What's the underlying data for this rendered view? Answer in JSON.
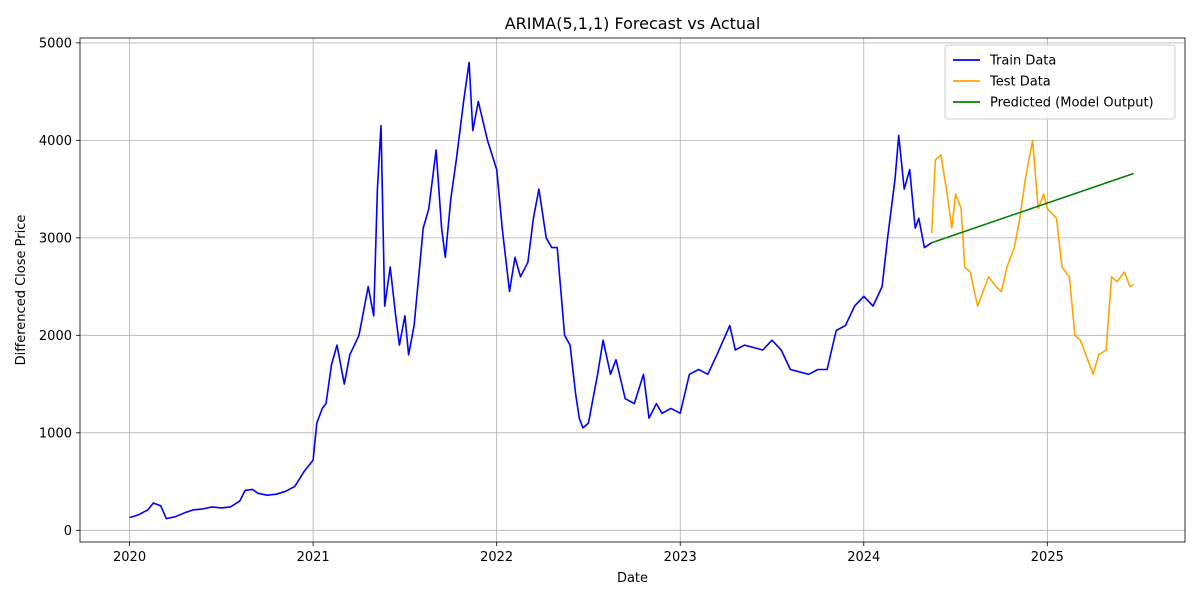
{
  "chart_data": {
    "type": "line",
    "title": "ARIMA(5,1,1) Forecast vs Actual",
    "xlabel": "Date",
    "ylabel": "Differenced Close Price",
    "x_ticks": [
      "2020",
      "2021",
      "2022",
      "2023",
      "2024",
      "2025"
    ],
    "x_tick_values": [
      2020,
      2021,
      2022,
      2023,
      2024,
      2025
    ],
    "y_ticks": [
      "0",
      "1000",
      "2000",
      "3000",
      "4000",
      "5000"
    ],
    "y_tick_values": [
      0,
      1000,
      2000,
      3000,
      4000,
      5000
    ],
    "xlim": [
      2019.73,
      2025.75
    ],
    "ylim": [
      -120,
      5050
    ],
    "grid": true,
    "legend_position": "top-right",
    "series": [
      {
        "name": "Train Data",
        "color": "#0000ff",
        "points": [
          [
            2020.0,
            130
          ],
          [
            2020.05,
            160
          ],
          [
            2020.1,
            210
          ],
          [
            2020.13,
            280
          ],
          [
            2020.17,
            250
          ],
          [
            2020.2,
            120
          ],
          [
            2020.25,
            140
          ],
          [
            2020.3,
            180
          ],
          [
            2020.35,
            210
          ],
          [
            2020.4,
            220
          ],
          [
            2020.45,
            240
          ],
          [
            2020.5,
            230
          ],
          [
            2020.55,
            240
          ],
          [
            2020.6,
            300
          ],
          [
            2020.63,
            410
          ],
          [
            2020.67,
            420
          ],
          [
            2020.7,
            380
          ],
          [
            2020.75,
            360
          ],
          [
            2020.8,
            370
          ],
          [
            2020.85,
            400
          ],
          [
            2020.9,
            450
          ],
          [
            2020.95,
            600
          ],
          [
            2021.0,
            720
          ],
          [
            2021.02,
            1100
          ],
          [
            2021.05,
            1250
          ],
          [
            2021.07,
            1300
          ],
          [
            2021.1,
            1700
          ],
          [
            2021.13,
            1900
          ],
          [
            2021.17,
            1500
          ],
          [
            2021.2,
            1800
          ],
          [
            2021.25,
            2000
          ],
          [
            2021.3,
            2500
          ],
          [
            2021.33,
            2200
          ],
          [
            2021.35,
            3500
          ],
          [
            2021.37,
            4150
          ],
          [
            2021.39,
            2300
          ],
          [
            2021.42,
            2700
          ],
          [
            2021.45,
            2200
          ],
          [
            2021.47,
            1900
          ],
          [
            2021.5,
            2200
          ],
          [
            2021.52,
            1800
          ],
          [
            2021.55,
            2100
          ],
          [
            2021.58,
            2700
          ],
          [
            2021.6,
            3100
          ],
          [
            2021.63,
            3300
          ],
          [
            2021.67,
            3900
          ],
          [
            2021.7,
            3100
          ],
          [
            2021.72,
            2800
          ],
          [
            2021.75,
            3400
          ],
          [
            2021.78,
            3800
          ],
          [
            2021.82,
            4400
          ],
          [
            2021.85,
            4800
          ],
          [
            2021.87,
            4100
          ],
          [
            2021.9,
            4400
          ],
          [
            2021.95,
            4000
          ],
          [
            2022.0,
            3700
          ],
          [
            2022.03,
            3100
          ],
          [
            2022.07,
            2450
          ],
          [
            2022.1,
            2800
          ],
          [
            2022.13,
            2600
          ],
          [
            2022.17,
            2750
          ],
          [
            2022.2,
            3200
          ],
          [
            2022.23,
            3500
          ],
          [
            2022.27,
            3000
          ],
          [
            2022.3,
            2900
          ],
          [
            2022.33,
            2900
          ],
          [
            2022.37,
            2000
          ],
          [
            2022.4,
            1900
          ],
          [
            2022.43,
            1400
          ],
          [
            2022.45,
            1150
          ],
          [
            2022.47,
            1050
          ],
          [
            2022.5,
            1100
          ],
          [
            2022.55,
            1600
          ],
          [
            2022.58,
            1950
          ],
          [
            2022.62,
            1600
          ],
          [
            2022.65,
            1750
          ],
          [
            2022.7,
            1350
          ],
          [
            2022.75,
            1300
          ],
          [
            2022.8,
            1600
          ],
          [
            2022.83,
            1150
          ],
          [
            2022.87,
            1300
          ],
          [
            2022.9,
            1200
          ],
          [
            2022.95,
            1250
          ],
          [
            2023.0,
            1200
          ],
          [
            2023.05,
            1600
          ],
          [
            2023.1,
            1650
          ],
          [
            2023.15,
            1600
          ],
          [
            2023.2,
            1800
          ],
          [
            2023.27,
            2100
          ],
          [
            2023.3,
            1850
          ],
          [
            2023.35,
            1900
          ],
          [
            2023.45,
            1850
          ],
          [
            2023.5,
            1950
          ],
          [
            2023.55,
            1850
          ],
          [
            2023.6,
            1650
          ],
          [
            2023.7,
            1600
          ],
          [
            2023.75,
            1650
          ],
          [
            2023.8,
            1650
          ],
          [
            2023.85,
            2050
          ],
          [
            2023.9,
            2100
          ],
          [
            2023.95,
            2300
          ],
          [
            2024.0,
            2400
          ],
          [
            2024.05,
            2300
          ],
          [
            2024.1,
            2500
          ],
          [
            2024.13,
            3000
          ],
          [
            2024.17,
            3600
          ],
          [
            2024.19,
            4050
          ],
          [
            2024.22,
            3500
          ],
          [
            2024.25,
            3700
          ],
          [
            2024.28,
            3100
          ],
          [
            2024.3,
            3200
          ],
          [
            2024.33,
            2900
          ],
          [
            2024.37,
            2950
          ]
        ]
      },
      {
        "name": "Test Data",
        "color": "#ffa500",
        "points": [
          [
            2024.37,
            3050
          ],
          [
            2024.39,
            3800
          ],
          [
            2024.42,
            3850
          ],
          [
            2024.45,
            3500
          ],
          [
            2024.48,
            3100
          ],
          [
            2024.5,
            3450
          ],
          [
            2024.53,
            3300
          ],
          [
            2024.55,
            2700
          ],
          [
            2024.58,
            2650
          ],
          [
            2024.62,
            2300
          ],
          [
            2024.65,
            2450
          ],
          [
            2024.68,
            2600
          ],
          [
            2024.72,
            2500
          ],
          [
            2024.75,
            2450
          ],
          [
            2024.78,
            2700
          ],
          [
            2024.82,
            2900
          ],
          [
            2024.85,
            3200
          ],
          [
            2024.88,
            3600
          ],
          [
            2024.92,
            4000
          ],
          [
            2024.95,
            3300
          ],
          [
            2024.98,
            3450
          ],
          [
            2025.0,
            3300
          ],
          [
            2025.05,
            3200
          ],
          [
            2025.08,
            2700
          ],
          [
            2025.12,
            2600
          ],
          [
            2025.15,
            2000
          ],
          [
            2025.18,
            1950
          ],
          [
            2025.22,
            1750
          ],
          [
            2025.25,
            1600
          ],
          [
            2025.28,
            1800
          ],
          [
            2025.32,
            1850
          ],
          [
            2025.35,
            2600
          ],
          [
            2025.38,
            2550
          ],
          [
            2025.42,
            2650
          ],
          [
            2025.45,
            2500
          ],
          [
            2025.47,
            2520
          ]
        ]
      },
      {
        "name": "Predicted (Model Output)",
        "color": "#008000",
        "points": [
          [
            2024.37,
            2950
          ],
          [
            2025.47,
            3660
          ]
        ]
      }
    ]
  }
}
